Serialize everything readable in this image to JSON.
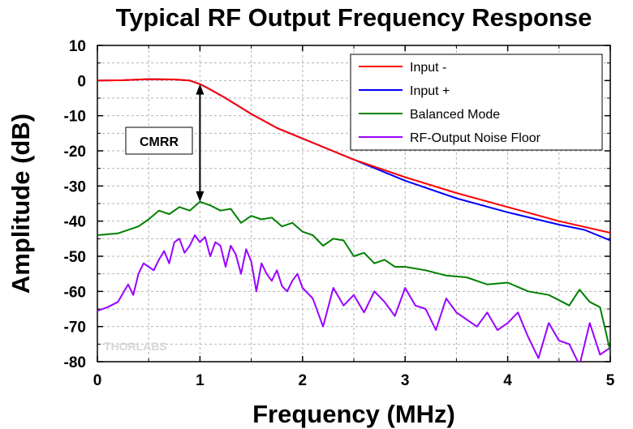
{
  "chart_data": {
    "type": "line",
    "title": "Typical RF Output Frequency Response",
    "xlabel": "Frequency (MHz)",
    "ylabel": "Amplitude (dB)",
    "xlim": [
      0,
      5
    ],
    "ylim": [
      -80,
      10
    ],
    "xticks": [
      0,
      1,
      2,
      3,
      4,
      5
    ],
    "yticks": [
      10,
      0,
      -10,
      -20,
      -30,
      -40,
      -50,
      -60,
      -70,
      -80
    ],
    "grid": true,
    "legend_position": "top-right",
    "series": [
      {
        "name": "Input -",
        "color": "#ff0000",
        "x": [
          0,
          0.25,
          0.5,
          0.75,
          0.9,
          1.0,
          1.1,
          1.25,
          1.5,
          1.75,
          2.0,
          2.5,
          3.0,
          3.5,
          4.0,
          4.5,
          5.0
        ],
        "y": [
          0,
          0.1,
          0.4,
          0.3,
          0,
          -1,
          -2.5,
          -5,
          -9.5,
          -13.5,
          -16.5,
          -22.5,
          -27.5,
          -32,
          -36,
          -40,
          -43.3
        ]
      },
      {
        "name": "Input +",
        "color": "#0000ff",
        "x": [
          0,
          0.25,
          0.5,
          0.75,
          0.9,
          1.0,
          1.1,
          1.25,
          1.5,
          1.75,
          2.0,
          2.5,
          2.75,
          3.0,
          3.5,
          4.0,
          4.5,
          4.75,
          5.0
        ],
        "y": [
          0,
          0.1,
          0.4,
          0.3,
          0,
          -1,
          -2.5,
          -5,
          -9.5,
          -13.5,
          -16.5,
          -22.5,
          -25.5,
          -28.5,
          -33.5,
          -37.5,
          -41,
          -42.5,
          -45.5
        ]
      },
      {
        "name": "Balanced Mode",
        "color": "#008000",
        "x": [
          0,
          0.2,
          0.4,
          0.5,
          0.6,
          0.7,
          0.8,
          0.9,
          1.0,
          1.1,
          1.2,
          1.3,
          1.4,
          1.5,
          1.6,
          1.7,
          1.8,
          1.9,
          2.0,
          2.1,
          2.2,
          2.3,
          2.4,
          2.5,
          2.6,
          2.7,
          2.8,
          2.9,
          3.0,
          3.2,
          3.4,
          3.6,
          3.8,
          4.0,
          4.2,
          4.4,
          4.5,
          4.6,
          4.7,
          4.8,
          4.9,
          5.0
        ],
        "y": [
          -44,
          -43.5,
          -41.5,
          -39.5,
          -37,
          -38,
          -36,
          -37,
          -34.5,
          -35.5,
          -37,
          -36.5,
          -40.5,
          -38.5,
          -39.5,
          -39,
          -41.5,
          -40.5,
          -43,
          -44,
          -47,
          -45,
          -45.5,
          -50,
          -49,
          -52,
          -51,
          -53,
          -53,
          -54,
          -55.5,
          -56,
          -58,
          -57.5,
          -60,
          -61,
          -62.5,
          -64,
          -59.5,
          -63,
          -64.5,
          -77
        ]
      },
      {
        "name": "RF-Output Noise Floor",
        "color": "#9900ff",
        "x": [
          0,
          0.1,
          0.2,
          0.3,
          0.35,
          0.4,
          0.45,
          0.5,
          0.55,
          0.6,
          0.65,
          0.7,
          0.75,
          0.8,
          0.85,
          0.9,
          0.95,
          1.0,
          1.05,
          1.1,
          1.15,
          1.2,
          1.25,
          1.3,
          1.35,
          1.4,
          1.45,
          1.5,
          1.55,
          1.6,
          1.65,
          1.7,
          1.75,
          1.8,
          1.85,
          1.9,
          1.95,
          2.0,
          2.1,
          2.2,
          2.3,
          2.4,
          2.5,
          2.6,
          2.7,
          2.8,
          2.9,
          3.0,
          3.1,
          3.2,
          3.3,
          3.4,
          3.5,
          3.6,
          3.7,
          3.8,
          3.9,
          4.0,
          4.1,
          4.2,
          4.3,
          4.4,
          4.5,
          4.6,
          4.7,
          4.8,
          4.9,
          5.0
        ],
        "y": [
          -65.5,
          -64.5,
          -63,
          -58,
          -61,
          -55,
          -52,
          -53,
          -54,
          -51,
          -48.5,
          -52,
          -46,
          -45,
          -49,
          -47,
          -44,
          -46,
          -44.5,
          -50,
          -46,
          -47,
          -53,
          -47,
          -49.5,
          -55,
          -48,
          -51.5,
          -60,
          -52,
          -55,
          -57,
          -54,
          -58.5,
          -60,
          -57,
          -55,
          -59,
          -62,
          -70,
          -59,
          -64,
          -61,
          -66,
          -60,
          -63,
          -67,
          -59,
          -64,
          -65,
          -71,
          -62,
          -66,
          -68,
          -70,
          -66,
          -71,
          -69,
          -66,
          -73,
          -79,
          -69,
          -74,
          -75,
          -81,
          -69,
          -78,
          -76
        ]
      }
    ],
    "annotations": [
      {
        "text": "CMRR",
        "type": "double-arrow",
        "x": 1.0,
        "y_from": -1,
        "y_to": -34.5
      }
    ],
    "watermark": "THORLABS"
  }
}
